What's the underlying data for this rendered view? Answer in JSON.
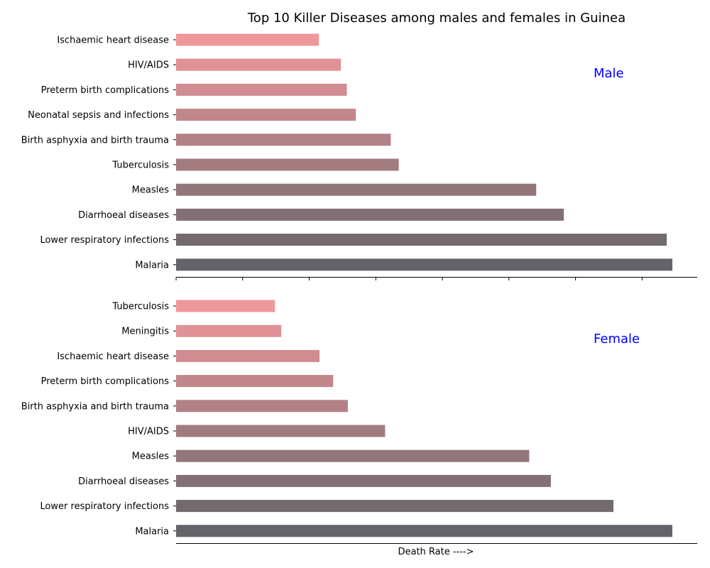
{
  "chart_data": {
    "type": "bar",
    "orientation": "horizontal",
    "title": "Top 10 Killer Diseases among males and females in Guinea",
    "xlabel": "Death Rate ---->",
    "xticks_labeled": false,
    "grid": false,
    "panel_label_color": "#0000ff",
    "bar_colors": [
      "#646369",
      "#736a6e",
      "#837074",
      "#92767a",
      "#a27b7f",
      "#b18185",
      "#c1878a",
      "#d08c90",
      "#e09296",
      "#ef989b"
    ],
    "panels": [
      {
        "label": "Male",
        "categories": [
          "Malaria",
          "Lower respiratory infections",
          "Diarrhoeal diseases",
          "Measles",
          "Tuberculosis",
          "Birth asphyxia and birth trauma",
          "Neonatal sepsis and infections",
          "Preterm birth complications",
          "HIV/AIDS",
          "Ischaemic heart disease"
        ],
        "values": [
          149.1,
          147.4,
          116.5,
          108.2,
          66.9,
          64.5,
          54.0,
          51.3,
          49.5,
          42.9
        ]
      },
      {
        "label": "Female",
        "categories": [
          "Malaria",
          "Lower respiratory infections",
          "Diarrhoeal diseases",
          "Measles",
          "HIV/AIDS",
          "Birth asphyxia and birth trauma",
          "Preterm birth complications",
          "Ischaemic heart disease",
          "Meningitis",
          "Tuberculosis"
        ],
        "values": [
          149.1,
          131.4,
          112.6,
          106.1,
          62.8,
          51.6,
          47.2,
          43.1,
          31.6,
          29.7
        ]
      }
    ]
  }
}
